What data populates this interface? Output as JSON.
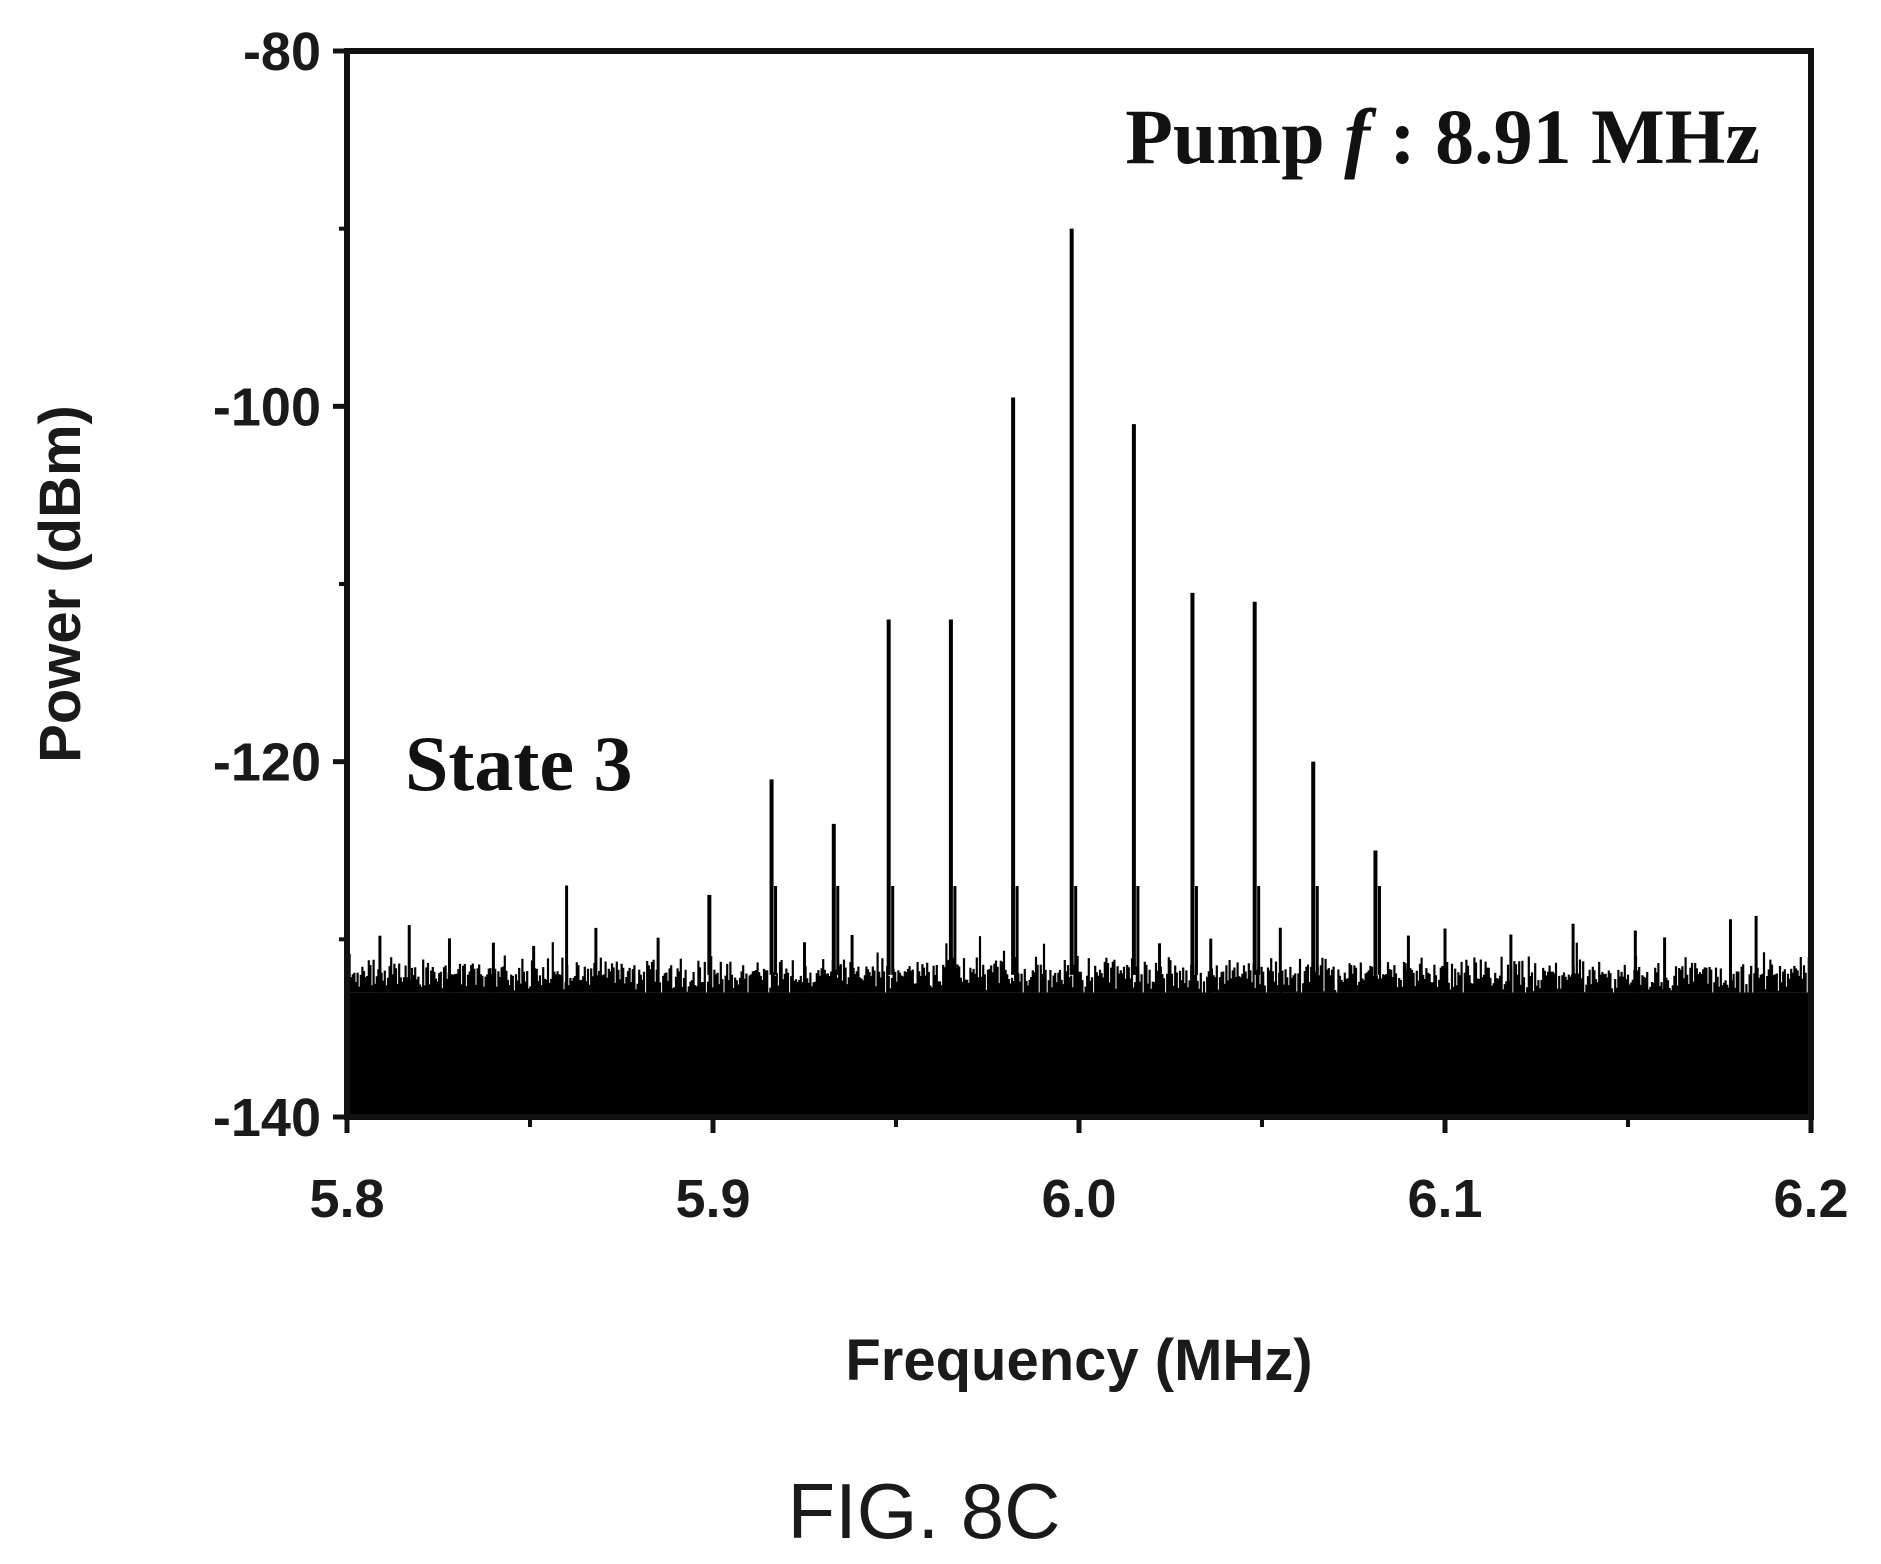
{
  "figure": {
    "caption": "FIG. 8C"
  },
  "chart_data": {
    "type": "line",
    "xlabel": "Frequency (MHz)",
    "ylabel": "Power (dBm)",
    "xlim": [
      5.8,
      6.2
    ],
    "ylim": [
      -140,
      -80
    ],
    "x_ticks": [
      5.8,
      5.9,
      6.0,
      6.1,
      6.2
    ],
    "x_tick_labels": [
      "5.8",
      "5.9",
      "6.0",
      "6.1",
      "6.2"
    ],
    "y_ticks": [
      -140,
      -120,
      -100,
      -80
    ],
    "y_tick_labels": [
      "-140",
      "-120",
      "-100",
      "-80"
    ],
    "grid": false,
    "legend": "none",
    "annotations": [
      {
        "text_prefix": "Pump ",
        "text_var": "f",
        "text_suffix": " : 8.91 MHz"
      },
      {
        "text": "State 3"
      }
    ],
    "series": [
      {
        "style": "spectrum",
        "noise_floor_dbm": [
          -139,
          -131
        ],
        "peaks": [
          {
            "x": 5.899,
            "y": -127.5
          },
          {
            "x": 5.916,
            "y": -121.0
          },
          {
            "x": 5.933,
            "y": -123.5
          },
          {
            "x": 5.948,
            "y": -112.0
          },
          {
            "x": 5.965,
            "y": -112.0
          },
          {
            "x": 5.982,
            "y": -99.5
          },
          {
            "x": 5.998,
            "y": -90.0
          },
          {
            "x": 6.015,
            "y": -101.0
          },
          {
            "x": 6.031,
            "y": -110.5
          },
          {
            "x": 6.048,
            "y": -111.0
          },
          {
            "x": 6.064,
            "y": -120.0
          },
          {
            "x": 6.081,
            "y": -125.0
          }
        ]
      }
    ]
  }
}
